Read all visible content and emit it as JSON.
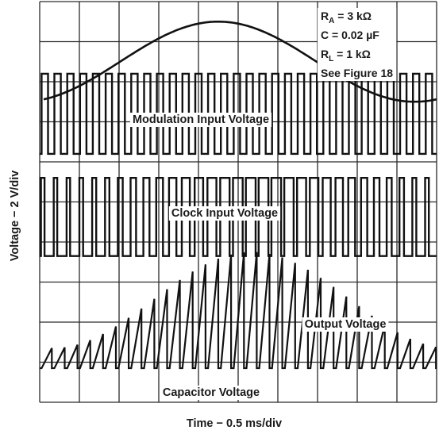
{
  "chart_data": {
    "type": "line",
    "title": "",
    "xlabel": "Time − 0.5 ms/div",
    "ylabel": "Voltage − 2 V/div",
    "grid": true,
    "grid_divisions": {
      "x": 10,
      "y": 10
    },
    "xlim": [
      0,
      5
    ],
    "x_unit": "ms",
    "y_scale": "2 V/div",
    "legend": "top-right",
    "annotations": {
      "ra": {
        "sym": "R",
        "sub": "A",
        "rest": " = 3 kΩ"
      },
      "c": "C = 0.02 µF",
      "rl": {
        "sym": "R",
        "sub": "L",
        "rest": " = 1 kΩ"
      },
      "fig": "See Figure 18"
    },
    "series": [
      {
        "name": "Modulation Input Voltage",
        "kind": "sine",
        "start_phase_deg": 200,
        "cycles": 1,
        "amplitude_div": 1.0,
        "center_div": 8.5
      },
      {
        "name": "Clock Input Voltage",
        "kind": "square",
        "pulses": 31,
        "duty": 0.5,
        "low_div": 6.2,
        "high_div": 8.2
      },
      {
        "name": "Output Voltage",
        "kind": "pwm",
        "pulses": 31,
        "duty_min": 0.3,
        "duty_max": 0.85,
        "low_div": 3.65,
        "high_div": 5.6
      },
      {
        "name": "Capacitor Voltage",
        "kind": "sawtooth",
        "teeth": 31,
        "base_div": 0.85,
        "peak_min_div": 1.35,
        "peak_max_div": 3.75
      }
    ]
  }
}
